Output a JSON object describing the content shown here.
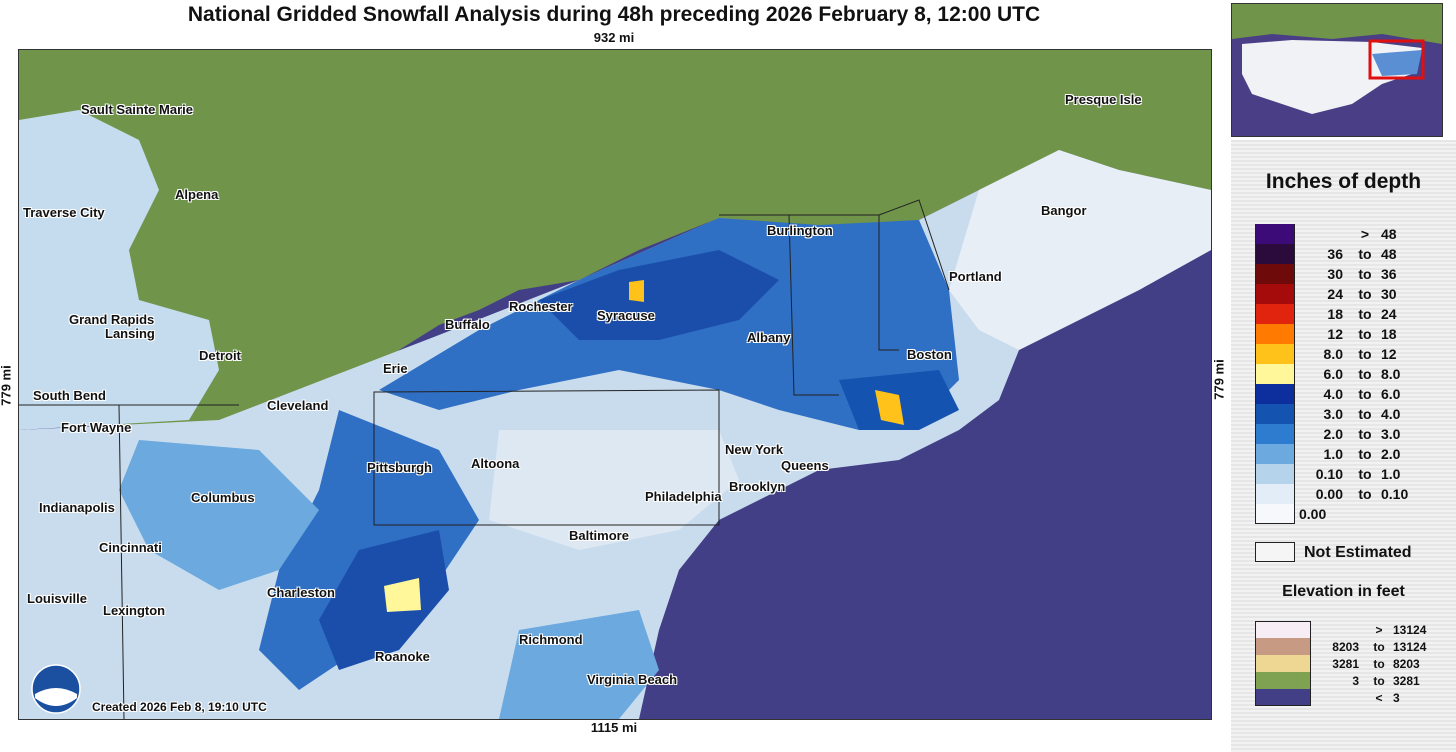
{
  "title": "National Gridded Snowfall Analysis during 48h preceding 2026 February 8, 12:00 UTC",
  "scale": {
    "top": "932 mi",
    "bottom": "1115 mi",
    "left": "779 mi",
    "right": "779 mi"
  },
  "created": "Created 2026 Feb 8, 19:10 UTC",
  "cities": [
    "Sault Sainte Marie",
    "Alpena",
    "Traverse City",
    "Grand Rapids",
    "Lansing",
    "Detroit",
    "South Bend",
    "Fort Wayne",
    "Indianapolis",
    "Cincinnati",
    "Louisville",
    "Lexington",
    "Columbus",
    "Cleveland",
    "Erie",
    "Buffalo",
    "Rochester",
    "Syracuse",
    "Burlington",
    "Albany",
    "Portland",
    "Bangor",
    "Presque Isle",
    "Boston",
    "New York",
    "Queens",
    "Brooklyn",
    "Philadelphia",
    "Pittsburgh",
    "Altoona",
    "Baltimore",
    "Charleston",
    "Roanoke",
    "Richmond",
    "Virginia Beach"
  ],
  "legend": {
    "title": "Inches of depth",
    "rows": [
      {
        "lo": "",
        "to": ">",
        "hi": "48",
        "color": "#3d0b78"
      },
      {
        "lo": "36",
        "to": "to",
        "hi": "48",
        "color": "#2b0a3c"
      },
      {
        "lo": "30",
        "to": "to",
        "hi": "36",
        "color": "#6e0a0a"
      },
      {
        "lo": "24",
        "to": "to",
        "hi": "30",
        "color": "#a60b0b"
      },
      {
        "lo": "18",
        "to": "to",
        "hi": "24",
        "color": "#e0240e"
      },
      {
        "lo": "12",
        "to": "to",
        "hi": "18",
        "color": "#ff7a00"
      },
      {
        "lo": "8.0",
        "to": "to",
        "hi": "12",
        "color": "#ffc21a"
      },
      {
        "lo": "6.0",
        "to": "to",
        "hi": "8.0",
        "color": "#fff79a"
      },
      {
        "lo": "4.0",
        "to": "to",
        "hi": "6.0",
        "color": "#0d2f9e"
      },
      {
        "lo": "3.0",
        "to": "to",
        "hi": "4.0",
        "color": "#1553b0"
      },
      {
        "lo": "2.0",
        "to": "to",
        "hi": "3.0",
        "color": "#2d7ccf"
      },
      {
        "lo": "1.0",
        "to": "to",
        "hi": "2.0",
        "color": "#6ba9de"
      },
      {
        "lo": "0.10",
        "to": "to",
        "hi": "1.0",
        "color": "#b6d3ec"
      },
      {
        "lo": "0.00",
        "to": "to",
        "hi": "0.10",
        "color": "#e2edf7"
      },
      {
        "lo": "0.00",
        "to": "",
        "hi": "",
        "color": "#f6f8fc"
      }
    ],
    "not_estimated": "Not Estimated",
    "elevation_title": "Elevation in feet",
    "elevation_rows": [
      {
        "lo": "",
        "to": ">",
        "hi": "13124",
        "color": "#f6eef4"
      },
      {
        "lo": "8203",
        "to": "to",
        "hi": "13124",
        "color": "#c79a84"
      },
      {
        "lo": "3281",
        "to": "to",
        "hi": "8203",
        "color": "#eed793"
      },
      {
        "lo": "3",
        "to": "to",
        "hi": "3281",
        "color": "#7ea152"
      },
      {
        "lo": "",
        "to": "<",
        "hi": "3",
        "color": "#433f86"
      }
    ]
  }
}
